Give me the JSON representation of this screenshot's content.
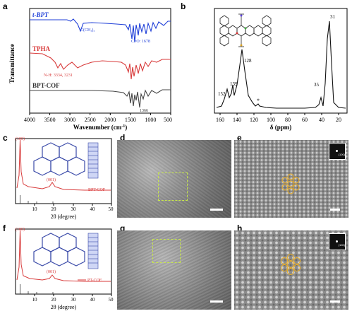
{
  "panels": {
    "a": {
      "label": "a",
      "xlabel": "Wavenumber (cm",
      "xlabel_sup": "-1",
      "xlabel_end": ")",
      "ylabel": "Transmittance",
      "ticks": [
        "4000",
        "3500",
        "3000",
        "2500",
        "2000",
        "1500",
        "1000",
        "500"
      ],
      "series": [
        {
          "name": "t-BPT",
          "color": "#1f3fd8",
          "note": "C(CH₃)₃",
          "note2": "C=O: 1678"
        },
        {
          "name": "TPHA",
          "color": "#d83a3a",
          "note": "N-H: 3334, 3231"
        },
        {
          "name": "BPT-COF",
          "color": "#444444",
          "note": "1366"
        }
      ]
    },
    "b": {
      "label": "b",
      "xlabel": "δ (ppm)",
      "ticks": [
        "160",
        "140",
        "120",
        "100",
        "80",
        "60",
        "40",
        "20"
      ],
      "peaks": [
        "152",
        "139",
        "128",
        "35",
        "31"
      ],
      "star": "*"
    },
    "c": {
      "label": "c",
      "xlabel": "2θ (degree)",
      "ticks": [
        "10",
        "20",
        "30",
        "40",
        "50"
      ],
      "peak1": "(100)",
      "peak2": "(001)",
      "legend": "BPT-COF",
      "color": "#d83a3a"
    },
    "d": {
      "label": "d"
    },
    "e": {
      "label": "e",
      "inset": "(100)"
    },
    "f": {
      "label": "f",
      "xlabel": "2θ (degree)",
      "ticks": [
        "10",
        "20",
        "30",
        "40",
        "50"
      ],
      "peak1": "(100)",
      "peak2": "(001)",
      "legend": "PT-COF",
      "color": "#d83a3a"
    },
    "g": {
      "label": "g"
    },
    "h": {
      "label": "h",
      "inset": "(100)"
    }
  }
}
